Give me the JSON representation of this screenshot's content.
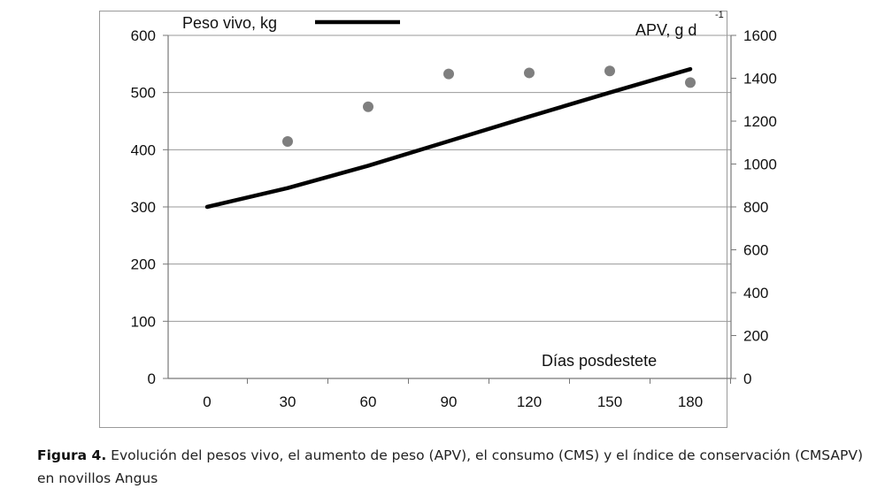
{
  "chart_data": {
    "type": "line",
    "x": [
      0,
      30,
      60,
      90,
      120,
      150,
      180
    ],
    "series": [
      {
        "name": "Peso vivo, kg",
        "kind": "line",
        "axis": "left",
        "color": "#000000",
        "values": [
          300,
          333,
          372,
          415,
          458,
          500,
          541
        ]
      },
      {
        "name": "APV, g d-1",
        "kind": "scatter",
        "axis": "right",
        "color": "#7f7f7f",
        "values": [
          null,
          1105,
          1267,
          1420,
          1425,
          1434,
          1380
        ]
      }
    ],
    "xlabel": "Días posdestete",
    "ylabel_left": "Peso vivo, kg",
    "ylabel_right": "APV, g d",
    "ylabel_right_sup": "-1",
    "ylim_left": [
      0,
      600
    ],
    "ylim_right": [
      0,
      1600
    ],
    "xticks": [
      "0",
      "30",
      "60",
      "90",
      "120",
      "150",
      "180"
    ],
    "yticks_left": [
      "0",
      "100",
      "200",
      "300",
      "400",
      "500",
      "600"
    ],
    "yticks_right": [
      "0",
      "200",
      "400",
      "600",
      "800",
      "1000",
      "1200",
      "1400",
      "1600"
    ],
    "grid": true,
    "legend_position": "top-left"
  },
  "caption": {
    "label": "Figura 4.",
    "text": " Evolución del pesos vivo, el aumento de peso (APV), el consumo (CMS) y el índice de conservación (CMSAPV) en novillos Angus"
  }
}
